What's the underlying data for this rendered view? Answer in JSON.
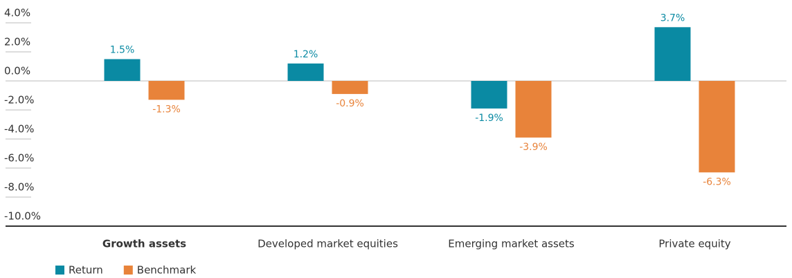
{
  "chart_data": {
    "type": "bar",
    "categories": [
      "Growth assets",
      "Developed market equities",
      "Emerging market assets",
      "Private equity"
    ],
    "series": [
      {
        "name": "Return",
        "color": "#0a8aa3",
        "values": [
          1.5,
          1.2,
          -1.9,
          3.7
        ],
        "value_labels": [
          "1.5%",
          "1.2%",
          "-1.9%",
          "3.7%"
        ]
      },
      {
        "name": "Benchmark",
        "color": "#e8833a",
        "values": [
          -1.3,
          -0.9,
          -3.9,
          -6.3
        ],
        "value_labels": [
          "-1.3%",
          "-0.9%",
          "-3.9%",
          "-6.3%"
        ]
      }
    ],
    "ylim": [
      -10,
      4
    ],
    "yticks": [
      {
        "value": 4,
        "label": "4.0%"
      },
      {
        "value": 2,
        "label": "2.0%"
      },
      {
        "value": 0,
        "label": "0.0%"
      },
      {
        "value": -2,
        "label": "-2.0%"
      },
      {
        "value": -4,
        "label": "-4.0%"
      },
      {
        "value": -6,
        "label": "-6.0%"
      },
      {
        "value": -8,
        "label": "-8.0%"
      },
      {
        "value": -10,
        "label": "-10.0%"
      }
    ],
    "legend": "bottom-left"
  }
}
